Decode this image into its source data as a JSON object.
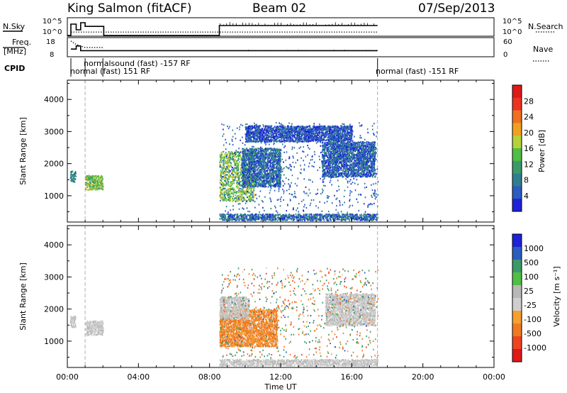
{
  "header": {
    "station": "King Salmon (fitACF)",
    "beam": "Beam 02",
    "date": "07/Sep/2013"
  },
  "labels": {
    "nsky": "N.Sky",
    "freq_line1": "Freq.",
    "freq_line2": "[MHz]",
    "cpid": "CPID",
    "nsearch": "N.Search",
    "nave": "Nave",
    "nsky_ticks": [
      "10^5",
      "10^0"
    ],
    "nsearch_ticks": [
      "10^5",
      "10^0"
    ],
    "freq_ticks": [
      "18",
      "8"
    ],
    "nave_ticks": [
      "60",
      "0"
    ]
  },
  "cpid_modes": [
    {
      "label": "normal (fast) 151 RF",
      "start_h": 1.0
    },
    {
      "label": "normalsound (fast) -157 RF",
      "start_h": 2.0
    },
    {
      "label": "normal (fast) -151 RF",
      "start_h": 17.45
    }
  ],
  "colors": {
    "frame": "#000000",
    "power_scale": [
      "#1e22d8",
      "#2a5dc0",
      "#2f7f8f",
      "#3a9a6a",
      "#4fbf45",
      "#b5d23a",
      "#f0a020",
      "#f07020",
      "#ee3320",
      "#e01818"
    ],
    "velocity_scale": [
      "#e01818",
      "#ee4420",
      "#f07a22",
      "#f5a030",
      "#cfcfcf",
      "#b8b8b8",
      "#4fbf45",
      "#3a9a6a",
      "#2a5dc0",
      "#1e22d8"
    ],
    "ground": "#c9a230"
  },
  "chart_data": [
    {
      "type": "line",
      "title": "N.Sky / N.Search",
      "x_unit": "hours UT",
      "xlim": [
        0,
        24
      ],
      "series": [
        {
          "name": "N.Sky",
          "x": [
            0.0,
            0.2,
            0.2,
            0.5,
            0.5,
            0.75,
            0.75,
            1.0,
            1.0,
            2.05,
            2.05,
            8.55,
            8.55,
            17.45
          ],
          "y": [
            0,
            0,
            4,
            4,
            2,
            2,
            4.5,
            4.5,
            3.2,
            3.2,
            0,
            0,
            3.5,
            3.5
          ]
        },
        {
          "name": "N.Search",
          "x": [
            0.2,
            2.05,
            8.55,
            17.45
          ],
          "y": [
            1.2,
            1.2,
            1.2,
            1.2
          ]
        }
      ]
    },
    {
      "type": "line",
      "title": "Freq. / Nave",
      "x_unit": "hours UT",
      "xlim": [
        0,
        24
      ],
      "series": [
        {
          "name": "Freq.",
          "unit": "MHz",
          "x": [
            0.2,
            0.5,
            0.5,
            0.75,
            0.75,
            1.0,
            1.0,
            2.05,
            8.55,
            17.45
          ],
          "y": [
            12,
            12,
            14,
            14,
            11,
            11,
            11,
            11,
            11,
            11
          ]
        },
        {
          "name": "Nave",
          "x": [
            0.2,
            0.5,
            1.0,
            2.05
          ],
          "y": [
            55,
            42,
            30,
            30
          ]
        }
      ]
    },
    {
      "type": "heatmap",
      "title": "Power",
      "xlabel": "Time UT",
      "ylabel": "Slant Range [km]",
      "x_ticks": [
        "00:00",
        "04:00",
        "08:00",
        "12:00",
        "16:00",
        "20:00",
        "00:00"
      ],
      "y_ticks": [
        "1000",
        "2000",
        "3000",
        "4000"
      ],
      "xlim": [
        0,
        24
      ],
      "ylim": [
        180,
        4600
      ],
      "colorbar": {
        "label": "Power [dB]",
        "ticks": [
          "28",
          "24",
          "20",
          "16",
          "12",
          "8",
          "4"
        ],
        "range": [
          0,
          30
        ]
      },
      "regions": [
        {
          "x": [
            0.15,
            0.45
          ],
          "y": [
            1450,
            1800
          ],
          "level": 8
        },
        {
          "x": [
            1.0,
            2.0
          ],
          "y": [
            1200,
            1650
          ],
          "level": 14
        },
        {
          "x": [
            8.55,
            10.5
          ],
          "y": [
            850,
            2400
          ],
          "level": 14
        },
        {
          "x": [
            9.8,
            12.0
          ],
          "y": [
            1300,
            2500
          ],
          "level": 6
        },
        {
          "x": [
            10.0,
            16.0
          ],
          "y": [
            2700,
            3200
          ],
          "level": 4
        },
        {
          "x": [
            14.3,
            17.3
          ],
          "y": [
            1600,
            2700
          ],
          "level": 5
        },
        {
          "x": [
            8.55,
            17.45
          ],
          "y": [
            250,
            450
          ],
          "level": 6
        }
      ]
    },
    {
      "type": "heatmap",
      "title": "Velocity",
      "xlabel": "Time UT",
      "ylabel": "Slant Range [km]",
      "x_ticks": [
        "00:00",
        "04:00",
        "08:00",
        "12:00",
        "16:00",
        "20:00",
        "00:00"
      ],
      "y_ticks": [
        "1000",
        "2000",
        "3000",
        "4000"
      ],
      "xlim": [
        0,
        24
      ],
      "ylim": [
        180,
        4600
      ],
      "colorbar": {
        "label": "Velocity [m s⁻¹]",
        "ticks": [
          "1000",
          "500",
          "100",
          "25",
          "-25",
          "-100",
          "-500",
          "-1000"
        ],
        "range": [
          -1000,
          1000
        ]
      },
      "regions": [
        {
          "x": [
            0.15,
            0.45
          ],
          "y": [
            1450,
            1800
          ],
          "value": 0
        },
        {
          "x": [
            1.0,
            2.0
          ],
          "y": [
            1200,
            1650
          ],
          "value": 0
        },
        {
          "x": [
            8.55,
            11.8
          ],
          "y": [
            850,
            2000
          ],
          "value": -150
        },
        {
          "x": [
            8.55,
            10.2
          ],
          "y": [
            1700,
            2400
          ],
          "value": 0
        },
        {
          "x": [
            14.5,
            17.3
          ],
          "y": [
            1500,
            2500
          ],
          "value": 0
        },
        {
          "x": [
            8.55,
            17.45
          ],
          "y": [
            250,
            450
          ],
          "value": 0
        }
      ]
    }
  ]
}
